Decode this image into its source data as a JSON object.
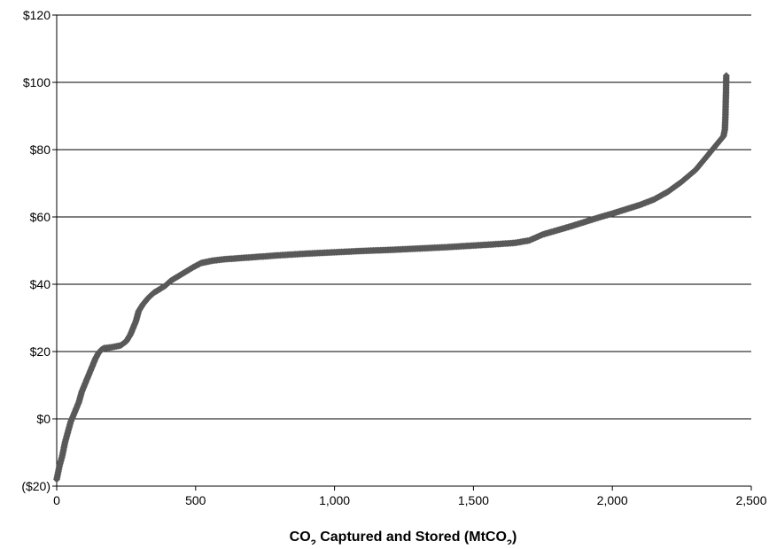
{
  "chart_data": {
    "type": "scatter",
    "title": "",
    "xlabel": {
      "prefix": "CO",
      "sub1": "2",
      "middle": " Captured and Stored (MtCO",
      "sub2": "2",
      "suffix": ")"
    },
    "ylabel": "",
    "xlim": [
      0,
      2500
    ],
    "ylim": [
      -20,
      120
    ],
    "x_ticks": [
      0,
      500,
      1000,
      1500,
      2000,
      2500
    ],
    "x_tick_labels": [
      "0",
      "500",
      "1,000",
      "1,500",
      "2,000",
      "2,500"
    ],
    "y_ticks": [
      -20,
      0,
      20,
      40,
      60,
      80,
      100,
      120
    ],
    "y_tick_labels": [
      "($20)",
      "$0",
      "$20",
      "$40",
      "$60",
      "$80",
      "$100",
      "$120"
    ],
    "grid": "horizontal",
    "legend": "none",
    "marker_color": "#595959",
    "series": [
      {
        "curve": [
          [
            0,
            -18
          ],
          [
            5,
            -16
          ],
          [
            10,
            -14
          ],
          [
            20,
            -11
          ],
          [
            30,
            -7
          ],
          [
            40,
            -4
          ],
          [
            50,
            -1
          ],
          [
            60,
            1
          ],
          [
            70,
            3
          ],
          [
            80,
            5
          ],
          [
            90,
            8
          ],
          [
            100,
            10
          ],
          [
            110,
            12
          ],
          [
            120,
            14
          ],
          [
            130,
            16
          ],
          [
            140,
            18
          ],
          [
            150,
            19.5
          ],
          [
            160,
            20.5
          ],
          [
            170,
            21
          ],
          [
            200,
            21.3
          ],
          [
            230,
            21.8
          ],
          [
            250,
            23
          ],
          [
            265,
            25
          ],
          [
            275,
            27
          ],
          [
            285,
            29
          ],
          [
            295,
            32
          ],
          [
            310,
            34
          ],
          [
            330,
            36
          ],
          [
            350,
            37.5
          ],
          [
            370,
            38.5
          ],
          [
            390,
            39.5
          ],
          [
            410,
            41
          ],
          [
            430,
            42
          ],
          [
            460,
            43.5
          ],
          [
            490,
            45
          ],
          [
            520,
            46.3
          ],
          [
            560,
            47
          ],
          [
            600,
            47.4
          ],
          [
            700,
            48
          ],
          [
            800,
            48.6
          ],
          [
            900,
            49.1
          ],
          [
            1000,
            49.5
          ],
          [
            1100,
            49.9
          ],
          [
            1200,
            50.2
          ],
          [
            1300,
            50.6
          ],
          [
            1400,
            51
          ],
          [
            1500,
            51.5
          ],
          [
            1600,
            52
          ],
          [
            1650,
            52.3
          ],
          [
            1700,
            53
          ],
          [
            1750,
            54.8
          ],
          [
            1800,
            56
          ],
          [
            1850,
            57.2
          ],
          [
            1900,
            58.5
          ],
          [
            1950,
            59.8
          ],
          [
            2000,
            61
          ],
          [
            2050,
            62.3
          ],
          [
            2100,
            63.6
          ],
          [
            2150,
            65.2
          ],
          [
            2200,
            67.5
          ],
          [
            2250,
            70.5
          ],
          [
            2300,
            74
          ],
          [
            2340,
            78
          ],
          [
            2370,
            81
          ],
          [
            2390,
            83
          ],
          [
            2400,
            84
          ],
          [
            2405,
            86
          ],
          [
            2407,
            90
          ],
          [
            2408,
            94
          ],
          [
            2409,
            97
          ],
          [
            2410,
            102
          ]
        ]
      }
    ]
  }
}
